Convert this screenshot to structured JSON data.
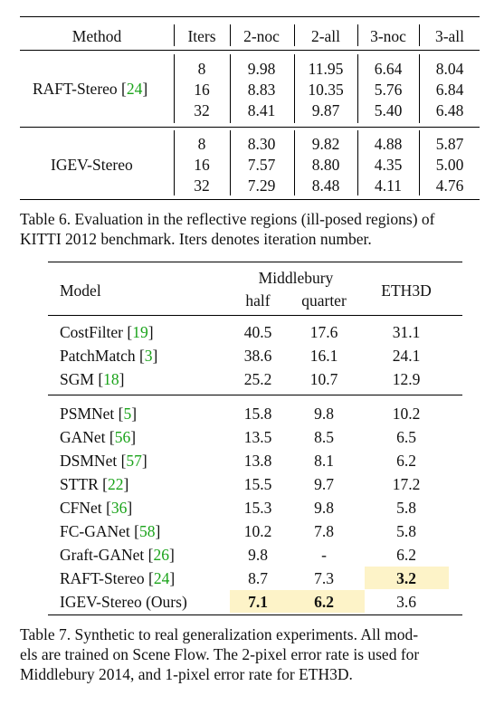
{
  "table6": {
    "headers": [
      "Method",
      "Iters",
      "2-noc",
      "2-all",
      "3-noc",
      "3-all"
    ],
    "groups": [
      {
        "method": "RAFT-Stereo",
        "ref": "24",
        "rows": [
          [
            "8",
            "9.98",
            "11.95",
            "6.64",
            "8.04"
          ],
          [
            "16",
            "8.83",
            "10.35",
            "5.76",
            "6.84"
          ],
          [
            "32",
            "8.41",
            "9.87",
            "5.40",
            "6.48"
          ]
        ]
      },
      {
        "method": "IGEV-Stereo",
        "ref": "",
        "rows": [
          [
            "8",
            "8.30",
            "9.82",
            "4.88",
            "5.87"
          ],
          [
            "16",
            "7.57",
            "8.80",
            "4.35",
            "5.00"
          ],
          [
            "32",
            "7.29",
            "8.48",
            "4.11",
            "4.76"
          ]
        ]
      }
    ],
    "caption_line1": "Table 6. Evaluation in the reflective regions (ill-posed regions) of",
    "caption_line2": "KITTI 2012 benchmark. Iters denotes iteration number."
  },
  "table7": {
    "header_model": "Model",
    "header_middlebury": "Middlebury",
    "header_half": "half",
    "header_quarter": "quarter",
    "header_eth3d": "ETH3D",
    "rows": [
      {
        "name": "CostFilter",
        "ref": "19",
        "half": "40.5",
        "quarter": "17.6",
        "eth3d": "31.1"
      },
      {
        "name": "PatchMatch",
        "ref": "3",
        "half": "38.6",
        "quarter": "16.1",
        "eth3d": "24.1"
      },
      {
        "name": "SGM",
        "ref": "18",
        "half": "25.2",
        "quarter": "10.7",
        "eth3d": "12.9"
      },
      {
        "name": "PSMNet",
        "ref": "5",
        "half": "15.8",
        "quarter": "9.8",
        "eth3d": "10.2"
      },
      {
        "name": "GANet",
        "ref": "56",
        "half": "13.5",
        "quarter": "8.5",
        "eth3d": "6.5"
      },
      {
        "name": "DSMNet",
        "ref": "57",
        "half": "13.8",
        "quarter": "8.1",
        "eth3d": "6.2"
      },
      {
        "name": "STTR",
        "ref": "22",
        "half": "15.5",
        "quarter": "9.7",
        "eth3d": "17.2"
      },
      {
        "name": "CFNet",
        "ref": "36",
        "half": "15.3",
        "quarter": "9.8",
        "eth3d": "5.8"
      },
      {
        "name": "FC-GANet",
        "ref": "58",
        "half": "10.2",
        "quarter": "7.8",
        "eth3d": "5.8"
      },
      {
        "name": "Graft-GANet",
        "ref": "26",
        "half": "9.8",
        "quarter": "-",
        "eth3d": "6.2"
      },
      {
        "name": "RAFT-Stereo",
        "ref": "24",
        "half": "8.7",
        "quarter": "7.3",
        "eth3d": "3.2"
      },
      {
        "name": "IGEV-Stereo (Ours)",
        "ref": "",
        "half": "7.1",
        "quarter": "6.2",
        "eth3d": "3.6"
      }
    ],
    "caption_line1": "Table 7. Synthetic to real generalization experiments. All mod-",
    "caption_line2": "els are trained on Scene Flow. The 2-pixel error rate is used for",
    "caption_line3": "Middlebury 2014, and 1-pixel error rate for ETH3D."
  },
  "colors": {
    "reference": "#1aa31a",
    "highlight": "#fdf3c8"
  }
}
